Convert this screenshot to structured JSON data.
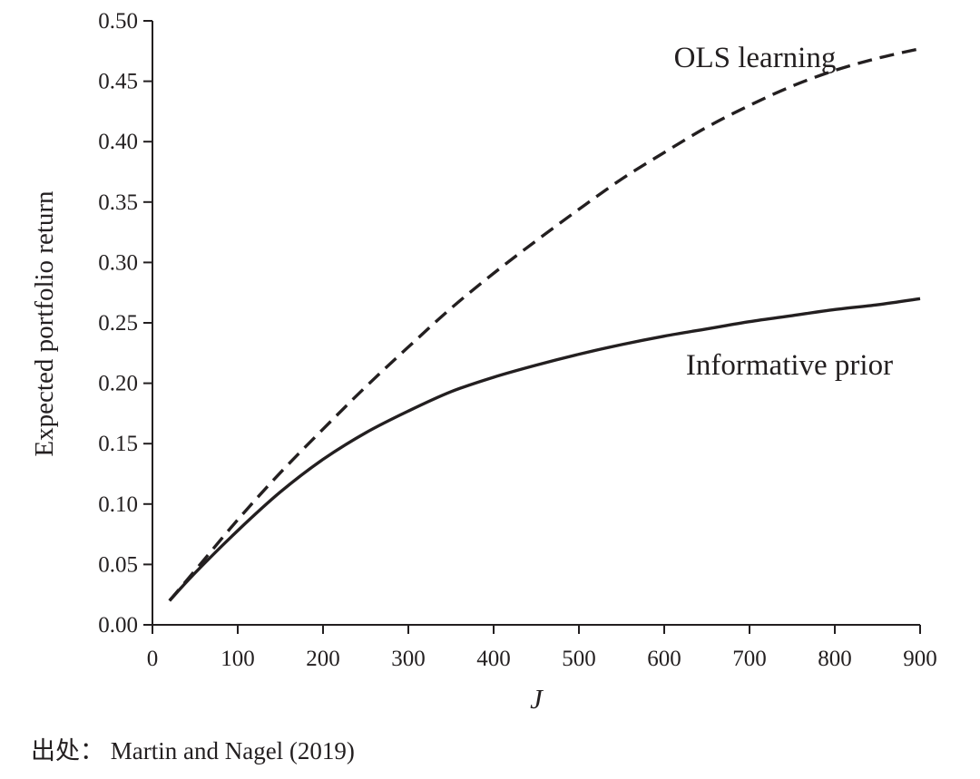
{
  "chart_data": {
    "type": "line",
    "xlabel": "J",
    "ylabel": "Expected portfolio return",
    "xlim": [
      0,
      900
    ],
    "ylim": [
      0,
      0.5
    ],
    "xticks": [
      "0",
      "100",
      "200",
      "300",
      "400",
      "500",
      "600",
      "700",
      "800",
      "900"
    ],
    "yticks": [
      "0.00",
      "0.05",
      "0.10",
      "0.15",
      "0.20",
      "0.25",
      "0.30",
      "0.35",
      "0.40",
      "0.45",
      "0.50"
    ],
    "grid": false,
    "x": [
      20,
      50,
      100,
      150,
      200,
      250,
      300,
      350,
      400,
      450,
      500,
      550,
      600,
      650,
      700,
      750,
      800,
      850,
      900
    ],
    "series": [
      {
        "name": "OLS learning",
        "line_style": "dashed",
        "values": [
          0.02,
          0.045,
          0.087,
          0.126,
          0.162,
          0.197,
          0.23,
          0.262,
          0.291,
          0.318,
          0.344,
          0.369,
          0.391,
          0.412,
          0.43,
          0.446,
          0.459,
          0.469,
          0.477
        ]
      },
      {
        "name": "Informative prior",
        "line_style": "solid",
        "values": [
          0.02,
          0.043,
          0.078,
          0.11,
          0.137,
          0.159,
          0.177,
          0.193,
          0.205,
          0.215,
          0.224,
          0.232,
          0.239,
          0.245,
          0.251,
          0.256,
          0.261,
          0.265,
          0.27
        ]
      }
    ],
    "line_color": "#231f20"
  },
  "source": "出处：  Martin and Nagel (2019)"
}
